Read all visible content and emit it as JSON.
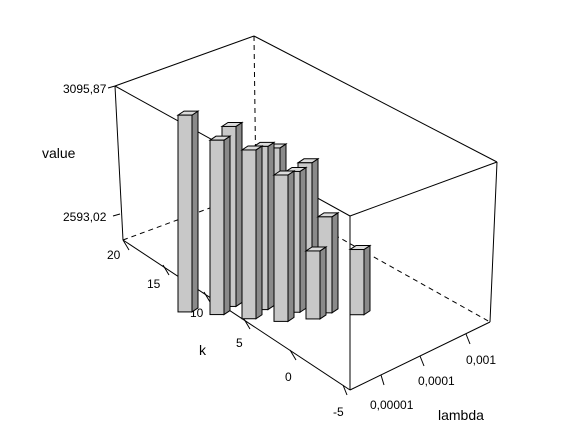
{
  "chart_data": {
    "type": "bar3d",
    "zlabel": "value",
    "ylabel": "k",
    "xlabel": "lambda",
    "z_ticks": [
      "3095,87",
      "2593,02"
    ],
    "k_ticks": [
      "20",
      "15",
      "10",
      "5",
      "0",
      "-5"
    ],
    "lambda_ticks": [
      "0,00001",
      "0,0001",
      "0,001"
    ],
    "bars": [
      {
        "k": 20,
        "lambda": "0,00001",
        "value": 3060
      },
      {
        "k": 15,
        "lambda": "0,00001",
        "value": 2980
      },
      {
        "k": 10,
        "lambda": "0,00001",
        "value": 2960
      },
      {
        "k": 5,
        "lambda": "0,00001",
        "value": 2880
      },
      {
        "k": 0,
        "lambda": "0,00001",
        "value": 2600
      },
      {
        "k": 0,
        "lambda": "0,0001",
        "value": 2590
      },
      {
        "k": 20,
        "lambda": "0,0001",
        "value": 3000
      },
      {
        "k": 15,
        "lambda": "0,0001",
        "value": 2940
      },
      {
        "k": 10,
        "lambda": "0,0001",
        "value": 2860
      },
      {
        "k": 5,
        "lambda": "0,0001",
        "value": 2700
      },
      {
        "k": 20,
        "lambda": "0,001",
        "value": 2900
      },
      {
        "k": 15,
        "lambda": "0,001",
        "value": 2860
      }
    ]
  }
}
